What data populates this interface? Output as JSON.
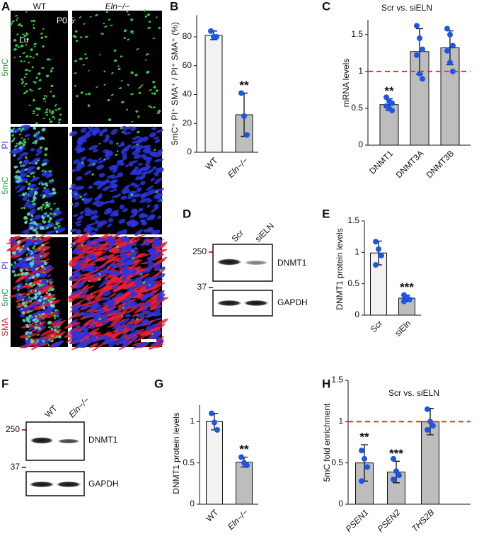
{
  "microscopy": {
    "panel": "A",
    "columns": [
      "WT",
      "Eln−/−"
    ],
    "age": "P0.5",
    "lumen": "Lu",
    "rows": [
      [
        "5mC"
      ],
      [
        "PI",
        "5mC"
      ],
      [
        "PI",
        "5mC",
        "SMA"
      ]
    ]
  },
  "blots": [
    {
      "panel": "D",
      "lanes": [
        "Scr",
        "siELN"
      ],
      "markers": [
        "250",
        "37"
      ],
      "bands": [
        "DNMT1",
        "GAPDH"
      ]
    },
    {
      "panel": "F",
      "lanes": [
        "WT",
        "Eln−/−"
      ],
      "markers": [
        "250",
        "37"
      ],
      "bands": [
        "DNMT1",
        "GAPDH"
      ]
    }
  ],
  "chart_data": [
    {
      "panel": "B",
      "type": "bar",
      "ylabel": "5mC⁺ PI⁺ SMA⁺ / PI⁺ SMA⁺ (%)",
      "categories": [
        "WT",
        "Eln−/−"
      ],
      "values": [
        81,
        26
      ],
      "errors": [
        3,
        15
      ],
      "points": [
        [
          84,
          80,
          80
        ],
        [
          41,
          25,
          12
        ]
      ],
      "colors": [
        "#f2f2f2",
        "#bdbdbd"
      ],
      "point_color": "#1a56e8",
      "annotations": [
        null,
        "**"
      ],
      "ylim": [
        0,
        95
      ],
      "yticks": [
        0,
        20,
        40,
        60,
        80
      ]
    },
    {
      "panel": "C",
      "type": "bar",
      "title": "Scr vs. siELN",
      "ylabel": "mRNA levels",
      "categories": [
        "DNMT1",
        "DNMT3A",
        "DNMT3B"
      ],
      "values": [
        0.55,
        1.27,
        1.32
      ],
      "errors": [
        0.08,
        0.31,
        0.23
      ],
      "points": [
        [
          0.65,
          0.6,
          0.57,
          0.53,
          0.5,
          0.47
        ],
        [
          1.62,
          1.45,
          1.3,
          1.22,
          0.97,
          0.9
        ],
        [
          1.58,
          1.5,
          1.35,
          1.28,
          1.12,
          1.0
        ]
      ],
      "colors": [
        "#bdbdbd",
        "#bdbdbd",
        "#bdbdbd"
      ],
      "point_color": "#1a56e8",
      "annotations": [
        "**",
        null,
        null
      ],
      "ref_line": 1,
      "ref_line_color": "#d9382b",
      "ylim": [
        0,
        1.7
      ],
      "yticks": [
        0,
        0.5,
        1,
        1.5
      ]
    },
    {
      "panel": "E",
      "type": "bar",
      "ylabel": "DNMT1 protein levels",
      "categories": [
        "Scr",
        "siEln"
      ],
      "values": [
        0.99,
        0.27
      ],
      "errors": [
        0.19,
        0.05
      ],
      "points": [
        [
          1.17,
          1.05,
          0.95,
          0.8
        ],
        [
          0.32,
          0.28,
          0.25,
          0.22
        ]
      ],
      "colors": [
        "#f2f2f2",
        "#bdbdbd"
      ],
      "point_color": "#1a56e8",
      "annotations": [
        null,
        "***"
      ],
      "ylim": [
        0,
        1.5
      ],
      "yticks": [
        0,
        0.5,
        1,
        1.5
      ]
    },
    {
      "panel": "G",
      "type": "bar",
      "ylabel": "DNMT1 protein levels",
      "categories": [
        "WT",
        "Eln−/−"
      ],
      "values": [
        1.0,
        0.51
      ],
      "errors": [
        0.1,
        0.06
      ],
      "points": [
        [
          1.1,
          0.99,
          0.9
        ],
        [
          0.57,
          0.5,
          0.47
        ]
      ],
      "colors": [
        "#f2f2f2",
        "#bdbdbd"
      ],
      "point_color": "#1a56e8",
      "annotations": [
        null,
        "**"
      ],
      "ylim": [
        0,
        1.2
      ],
      "yticks": [
        0,
        0.5,
        1
      ]
    },
    {
      "panel": "H",
      "type": "bar",
      "title": "Scr vs. siELN",
      "ylabel": "5mC fold enrichment",
      "categories": [
        "PSEN1",
        "PSEN2",
        "THS2B"
      ],
      "values": [
        0.5,
        0.39,
        1.0
      ],
      "errors": [
        0.22,
        0.13,
        0.16
      ],
      "points": [
        [
          0.65,
          0.55,
          0.45,
          0.28
        ],
        [
          0.55,
          0.4,
          0.35,
          0.3
        ],
        [
          1.15,
          1.0,
          0.95,
          0.9
        ]
      ],
      "colors": [
        "#bdbdbd",
        "#bdbdbd",
        "#bdbdbd"
      ],
      "point_color": "#1a56e8",
      "annotations": [
        "**",
        "***",
        null
      ],
      "ref_line": 1,
      "ref_line_color": "#d9382b",
      "ylim": [
        0,
        1.5
      ],
      "yticks": [
        0,
        0.5,
        1,
        1.5
      ]
    }
  ]
}
